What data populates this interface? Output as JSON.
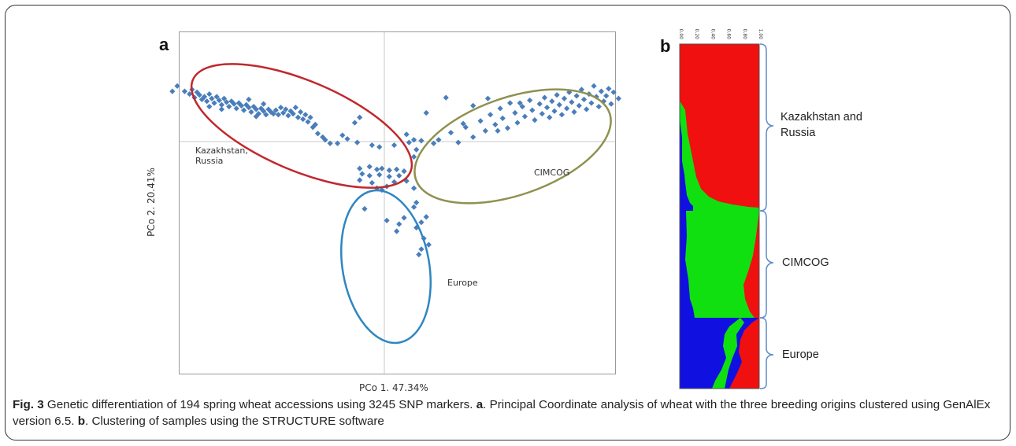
{
  "panel_a": {
    "label": "a",
    "chart_data": {
      "type": "scatter",
      "xlabel": "PCo 1.  47.34%",
      "ylabel": "PCo 2.  20.41%",
      "xlim": [
        -1,
        1
      ],
      "ylim": [
        -1,
        1
      ],
      "axes_lines_at_origin": true,
      "marker": "diamond",
      "marker_color": "#4a7ebb",
      "clusters": [
        {
          "label_lines": [
            "Kazakhstan,",
            "Russia"
          ],
          "ellipse_color": "#c0282d",
          "points": [
            [
              -0.84,
              0.62
            ],
            [
              -0.81,
              0.56
            ],
            [
              -0.79,
              0.53
            ],
            [
              -0.78,
              0.58
            ],
            [
              -0.77,
              0.49
            ],
            [
              -0.76,
              0.55
            ],
            [
              -0.75,
              0.52
            ],
            [
              -0.74,
              0.47
            ],
            [
              -0.73,
              0.5
            ],
            [
              -0.72,
              0.45
            ],
            [
              -0.71,
              0.53
            ],
            [
              -0.7,
              0.48
            ],
            [
              -0.69,
              0.43
            ],
            [
              -0.68,
              0.5
            ],
            [
              -0.67,
              0.46
            ],
            [
              -0.66,
              0.41
            ],
            [
              -0.65,
              0.48
            ],
            [
              -0.64,
              0.44
            ],
            [
              -0.63,
              0.39
            ],
            [
              -0.62,
              0.45
            ],
            [
              -0.61,
              0.42
            ],
            [
              -0.6,
              0.37
            ],
            [
              -0.59,
              0.43
            ],
            [
              -0.58,
              0.4
            ],
            [
              -0.57,
              0.35
            ],
            [
              -0.56,
              0.41
            ],
            [
              -0.55,
              0.38
            ],
            [
              -0.54,
              0.33
            ],
            [
              -0.53,
              0.39
            ],
            [
              -0.52,
              0.36
            ],
            [
              -0.51,
              0.31
            ],
            [
              -0.5,
              0.37
            ],
            [
              -0.49,
              0.34
            ],
            [
              -0.48,
              0.3
            ],
            [
              -0.47,
              0.36
            ],
            [
              -0.46,
              0.33
            ],
            [
              -0.45,
              0.31
            ],
            [
              -0.44,
              0.35
            ],
            [
              -0.43,
              0.3
            ],
            [
              -0.42,
              0.38
            ],
            [
              -0.41,
              0.32
            ],
            [
              -0.4,
              0.36
            ],
            [
              -0.39,
              0.29
            ],
            [
              -0.38,
              0.34
            ],
            [
              -0.37,
              0.31
            ],
            [
              -0.36,
              0.38
            ],
            [
              -0.35,
              0.27
            ],
            [
              -0.34,
              0.33
            ],
            [
              -0.33,
              0.25
            ],
            [
              -0.32,
              0.3
            ],
            [
              -0.31,
              0.22
            ],
            [
              -0.3,
              0.27
            ],
            [
              -0.28,
              0.19
            ],
            [
              -0.27,
              0.09
            ],
            [
              -0.25,
              0.05
            ],
            [
              -0.24,
              0.02
            ],
            [
              -0.22,
              -0.02
            ],
            [
              -0.19,
              -0.02
            ],
            [
              -0.17,
              0.07
            ],
            [
              -0.15,
              0.03
            ],
            [
              -0.12,
              0.21
            ],
            [
              -0.11,
              -0.01
            ],
            [
              -0.1,
              0.27
            ],
            [
              -0.05,
              -0.04
            ],
            [
              -0.02,
              -0.06
            ],
            [
              0.04,
              -0.04
            ],
            [
              0.1,
              -0.01
            ],
            [
              0.13,
              -0.09
            ],
            [
              0.12,
              -0.17
            ],
            [
              -0.86,
              0.56
            ],
            [
              -0.66,
              0.36
            ],
            [
              -0.52,
              0.28
            ],
            [
              -0.49,
              0.42
            ],
            [
              -0.29,
              0.16
            ],
            [
              -0.55,
              0.47
            ],
            [
              -0.71,
              0.39
            ]
          ]
        },
        {
          "label_lines": [
            "CIMCOG"
          ],
          "ellipse_color": "#8f9150",
          "points": [
            [
              0.95,
              0.48
            ],
            [
              0.93,
              0.55
            ],
            [
              0.92,
              0.42
            ],
            [
              0.91,
              0.59
            ],
            [
              0.9,
              0.51
            ],
            [
              0.89,
              0.45
            ],
            [
              0.88,
              0.56
            ],
            [
              0.87,
              0.39
            ],
            [
              0.86,
              0.5
            ],
            [
              0.85,
              0.62
            ],
            [
              0.84,
              0.43
            ],
            [
              0.83,
              0.53
            ],
            [
              0.82,
              0.36
            ],
            [
              0.81,
              0.47
            ],
            [
              0.8,
              0.58
            ],
            [
              0.79,
              0.4
            ],
            [
              0.78,
              0.51
            ],
            [
              0.77,
              0.33
            ],
            [
              0.76,
              0.44
            ],
            [
              0.75,
              0.55
            ],
            [
              0.74,
              0.37
            ],
            [
              0.73,
              0.48
            ],
            [
              0.72,
              0.3
            ],
            [
              0.71,
              0.41
            ],
            [
              0.7,
              0.52
            ],
            [
              0.69,
              0.34
            ],
            [
              0.68,
              0.45
            ],
            [
              0.67,
              0.27
            ],
            [
              0.66,
              0.38
            ],
            [
              0.65,
              0.49
            ],
            [
              0.64,
              0.31
            ],
            [
              0.63,
              0.42
            ],
            [
              0.61,
              0.24
            ],
            [
              0.6,
              0.35
            ],
            [
              0.59,
              0.46
            ],
            [
              0.57,
              0.28
            ],
            [
              0.56,
              0.39
            ],
            [
              0.54,
              0.21
            ],
            [
              0.53,
              0.32
            ],
            [
              0.51,
              0.43
            ],
            [
              0.5,
              0.15
            ],
            [
              0.48,
              0.26
            ],
            [
              0.47,
              0.37
            ],
            [
              0.45,
              0.19
            ],
            [
              0.43,
              0.3
            ],
            [
              0.41,
              0.12
            ],
            [
              0.39,
              0.23
            ],
            [
              0.36,
              0.05
            ],
            [
              0.33,
              0.16
            ],
            [
              0.3,
              -0.01
            ],
            [
              0.27,
              0.1
            ],
            [
              0.25,
              0.49
            ],
            [
              0.22,
              0.02
            ],
            [
              0.2,
              -0.02
            ],
            [
              0.17,
              0.32
            ],
            [
              0.15,
              0.01
            ],
            [
              0.12,
              0.02
            ],
            [
              0.09,
              0.08
            ],
            [
              0.55,
              0.43
            ],
            [
              0.32,
              0.2
            ],
            [
              0.46,
              0.12
            ],
            [
              0.36,
              0.4
            ],
            [
              0.42,
              0.48
            ]
          ]
        },
        {
          "label_lines": [
            "Europe"
          ],
          "ellipse_color": "#2e86c1",
          "points": [
            [
              -0.1,
              -0.3
            ],
            [
              -0.06,
              -0.28
            ],
            [
              -0.03,
              -0.31
            ],
            [
              -0.01,
              -0.3
            ],
            [
              0.02,
              -0.32
            ],
            [
              0.05,
              -0.31
            ],
            [
              0.08,
              -0.33
            ],
            [
              -0.09,
              -0.36
            ],
            [
              -0.06,
              -0.38
            ],
            [
              -0.02,
              -0.37
            ],
            [
              0.02,
              -0.39
            ],
            [
              0.06,
              -0.38
            ],
            [
              -0.1,
              -0.43
            ],
            [
              -0.05,
              -0.46
            ],
            [
              0.04,
              -0.45
            ],
            [
              0.09,
              -0.44
            ],
            [
              -0.03,
              -0.52
            ],
            [
              -0.01,
              -0.54
            ],
            [
              0.01,
              -0.5
            ],
            [
              0.12,
              -0.52
            ],
            [
              0.13,
              -0.68
            ],
            [
              0.12,
              -0.73
            ],
            [
              -0.08,
              -0.75
            ],
            [
              0.08,
              -0.85
            ],
            [
              0.15,
              -0.9
            ],
            [
              0.01,
              -0.88
            ],
            [
              0.06,
              -0.92
            ],
            [
              0.17,
              -0.84
            ],
            [
              0.13,
              -0.96
            ],
            [
              0.16,
              -1.08
            ],
            [
              0.18,
              -1.15
            ],
            [
              0.15,
              -1.2
            ],
            [
              0.14,
              -1.26
            ],
            [
              0.05,
              -1.0
            ]
          ]
        }
      ]
    }
  },
  "panel_b": {
    "label": "b",
    "chart_data": {
      "type": "area",
      "description": "STRUCTURE membership coefficients, K=3",
      "tick_labels": [
        "0.00",
        "0.20",
        "0.40",
        "0.60",
        "0.80",
        "1.00"
      ],
      "series_colors": {
        "blue": "#1010e0",
        "green": "#10e010",
        "red": "#f01010"
      },
      "groups": [
        {
          "label_lines": [
            "Kazakhstan and",
            "Russia"
          ],
          "order": 1
        },
        {
          "label_lines": [
            "CIMCOG"
          ],
          "order": 2
        },
        {
          "label_lines": [
            "Europe"
          ],
          "order": 3
        }
      ]
    }
  },
  "caption": {
    "fig_label": "Fig. 3",
    "text_1": " Genetic differentiation of 194 spring wheat accessions using 3245 SNP markers. ",
    "a_label": "a",
    "text_2": ". Principal Coordinate analysis of wheat with the three breeding origins clustered using GenAlEx version 6.5. ",
    "b_label": "b",
    "text_3": ". Clustering of samples using the STRUCTURE software"
  }
}
